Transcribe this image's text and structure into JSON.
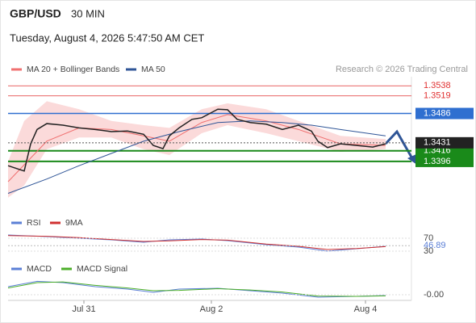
{
  "header": {
    "symbol": "GBP/USD",
    "interval": "30 MIN",
    "datetime": "Tuesday, August 4, 2026 5:47:50 AM CET",
    "credit": "Research © 2026 Trading Central"
  },
  "chart_data": [
    {
      "type": "line",
      "price": {
        "color": "#222222",
        "x": [
          0,
          5,
          7,
          9,
          12,
          17,
          22,
          27,
          32,
          37,
          42,
          45,
          48,
          50,
          53,
          57,
          60,
          65,
          68,
          71,
          75,
          80,
          85,
          90,
          94,
          96,
          99,
          103,
          108,
          113,
          117
        ],
        "values": [
          1.3388,
          1.3378,
          1.3429,
          1.3456,
          1.3467,
          1.3464,
          1.3459,
          1.3456,
          1.3452,
          1.3453,
          1.3447,
          1.3426,
          1.342,
          1.3444,
          1.3459,
          1.3475,
          1.3478,
          1.3494,
          1.3493,
          1.3475,
          1.3469,
          1.3466,
          1.3456,
          1.3464,
          1.3453,
          1.3434,
          1.3422,
          1.3429,
          1.3426,
          1.3423,
          1.3429
        ]
      },
      "bollinger": {
        "color": "#fbdada",
        "x": [
          0,
          5,
          12,
          22,
          32,
          42,
          50,
          60,
          68,
          80,
          90,
          103,
          117
        ],
        "upper": [
          1.3396,
          1.3472,
          1.3509,
          1.3494,
          1.3472,
          1.3464,
          1.3459,
          1.3494,
          1.3505,
          1.3494,
          1.3472,
          1.3444,
          1.3438
        ],
        "lower": [
          1.3328,
          1.3351,
          1.3419,
          1.3441,
          1.3441,
          1.3419,
          1.3408,
          1.3449,
          1.3464,
          1.3449,
          1.3434,
          1.3414,
          1.3419
        ]
      },
      "series": [
        {
          "name": "MA 20 + Bollinger Bands",
          "color": "#f07070",
          "x": [
            0,
            12,
            22,
            32,
            42,
            50,
            60,
            68,
            80,
            90,
            103,
            117
          ],
          "values": [
            1.3358,
            1.3434,
            1.3459,
            1.3456,
            1.3444,
            1.3434,
            1.3469,
            1.3484,
            1.3472,
            1.3456,
            1.3429,
            1.3426
          ]
        },
        {
          "name": "MA 50",
          "color": "#2f5597",
          "x": [
            0,
            12,
            22,
            32,
            42,
            53,
            65,
            75,
            85,
            94,
            103,
            117
          ],
          "values": [
            1.3336,
            1.3363,
            1.3388,
            1.3411,
            1.3434,
            1.3452,
            1.3469,
            1.3472,
            1.3469,
            1.3464,
            1.3456,
            1.3444
          ]
        }
      ],
      "levels": [
        {
          "value": 1.3538,
          "color": "#e03030",
          "boxed": false
        },
        {
          "value": 1.3519,
          "color": "#e03030",
          "boxed": false
        },
        {
          "value": 1.3486,
          "color": "#2f6fd0",
          "boxed": true
        },
        {
          "value": 1.3416,
          "color": "#1a8a1a",
          "boxed": true
        },
        {
          "value": 1.3396,
          "color": "#1a8a1a",
          "boxed": true
        }
      ],
      "last": 1.3431,
      "xlim": [
        0,
        125
      ],
      "ylim": [
        1.3308,
        1.3555
      ]
    },
    {
      "type": "line",
      "series": [
        {
          "name": "RSI",
          "color": "#5b7fd6",
          "x": [
            0,
            12,
            22,
            32,
            42,
            50,
            60,
            68,
            80,
            90,
            99,
            108,
            117
          ],
          "values": [
            80,
            75,
            70,
            65,
            57.5,
            65,
            67.5,
            62.5,
            50,
            42.5,
            30,
            37.5,
            45
          ]
        },
        {
          "name": "9MA",
          "color": "#d03030",
          "x": [
            0,
            12,
            22,
            32,
            42,
            50,
            60,
            68,
            80,
            90,
            99,
            108,
            117
          ],
          "values": [
            78,
            76,
            72,
            66,
            60,
            62,
            66,
            64,
            52,
            45,
            35,
            38,
            44
          ]
        }
      ],
      "last": 46.89,
      "xlim": [
        0,
        125
      ],
      "ylim": [
        12.5,
        87.5
      ],
      "yticks": [
        70,
        30
      ]
    },
    {
      "type": "line",
      "series": [
        {
          "name": "MACD",
          "color": "#5b7fd6",
          "x": [
            0,
            9,
            17,
            27,
            37,
            45,
            53,
            65,
            75,
            85,
            96,
            108,
            117
          ],
          "values": [
            0.0006,
            0.001,
            0.0009,
            0.0006,
            0.00042,
            0.00018,
            0.00042,
            0.00048,
            0.0003,
            0.00012,
            -0.00018,
            -0.00012,
            -6e-05
          ]
        },
        {
          "name": "MACD Signal",
          "color": "#4caf2a",
          "x": [
            0,
            9,
            17,
            27,
            37,
            45,
            53,
            65,
            75,
            85,
            96,
            108,
            117
          ],
          "values": [
            0.0005,
            0.0009,
            0.00095,
            0.0007,
            0.0005,
            0.0003,
            0.00032,
            0.00045,
            0.00035,
            0.0002,
            -0.0001,
            -0.00012,
            -8e-05
          ]
        }
      ],
      "xlim": [
        0,
        125
      ],
      "ylim": [
        -0.00042,
        0.0015
      ],
      "yticks": [
        {
          "value": 0,
          "label": "-0.00"
        }
      ],
      "xticks": [
        {
          "value": 23.5,
          "label": "Jul 31"
        },
        {
          "value": 63,
          "label": "Aug 2"
        },
        {
          "value": 110.75,
          "label": "Aug 4"
        }
      ]
    }
  ]
}
